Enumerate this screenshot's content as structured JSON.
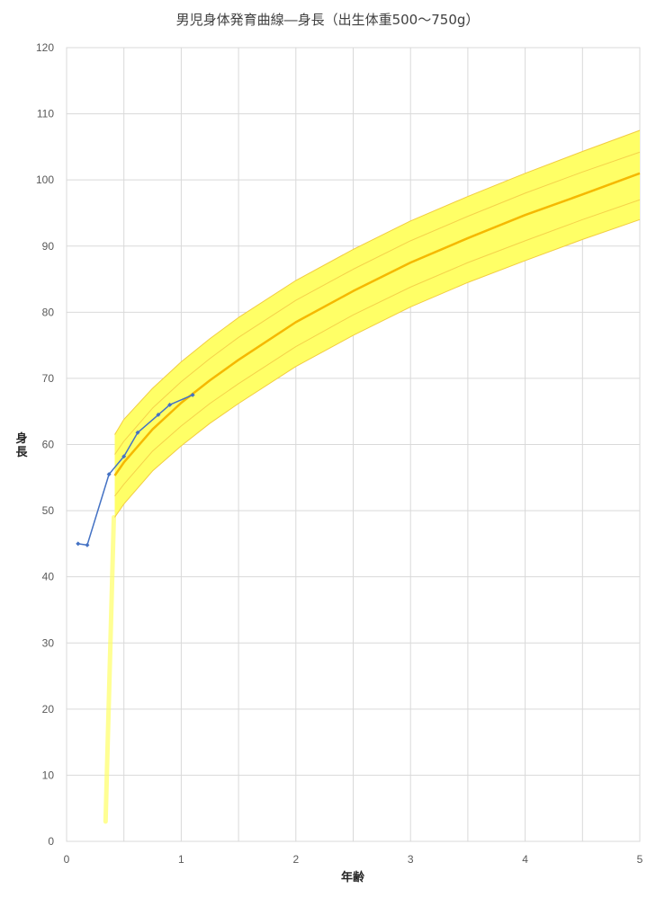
{
  "chart_data": {
    "type": "line",
    "title": "男児身体発育曲線―身長（出生体重500～750g）",
    "xlabel": "年齢",
    "ylabel": "身長",
    "xlim": [
      0,
      5
    ],
    "ylim": [
      0,
      120
    ],
    "x_ticks": [
      "0",
      "1",
      "2",
      "3",
      "4",
      "5"
    ],
    "y_ticks": [
      "0",
      "10",
      "20",
      "30",
      "40",
      "50",
      "60",
      "70",
      "80",
      "90",
      "100",
      "110",
      "120"
    ],
    "grid": true,
    "colors": {
      "band": "#ffff66",
      "band_edge": "#f2cc40",
      "median": "#f5b800",
      "inner_band": "#f5d24a",
      "patient": "#4472c4",
      "grid": "#d9d9d9",
      "frame": "#d9d9d9"
    },
    "series": [
      {
        "x": [
          0.42,
          0.5,
          0.75,
          1.0,
          1.25,
          1.5,
          2.0,
          2.5,
          3.0,
          3.5,
          4.0,
          4.5,
          5.0
        ],
        "values": [
          61.5,
          63.8,
          68.5,
          72.5,
          76.0,
          79.2,
          84.8,
          89.5,
          93.8,
          97.5,
          101.0,
          104.3,
          107.5
        ]
      },
      {
        "x": [
          0.42,
          0.5,
          0.75,
          1.0,
          1.25,
          1.5,
          2.0,
          2.5,
          3.0,
          3.5,
          4.0,
          4.5,
          5.0
        ],
        "values": [
          58.5,
          60.5,
          65.5,
          69.5,
          73.0,
          76.2,
          81.8,
          86.5,
          90.8,
          94.5,
          98.0,
          101.2,
          104.2
        ]
      },
      {
        "x": [
          0.42,
          0.5,
          0.75,
          1.0,
          1.25,
          1.5,
          2.0,
          2.5,
          3.0,
          3.5,
          4.0,
          4.5,
          5.0
        ],
        "values": [
          55.3,
          57.3,
          62.3,
          66.3,
          69.7,
          72.8,
          78.5,
          83.2,
          87.5,
          91.2,
          94.7,
          97.8,
          101.0
        ]
      },
      {
        "x": [
          0.42,
          0.5,
          0.75,
          1.0,
          1.25,
          1.5,
          2.0,
          2.5,
          3.0,
          3.5,
          4.0,
          4.5,
          5.0
        ],
        "values": [
          52.2,
          54.0,
          59.0,
          62.8,
          66.2,
          69.2,
          74.8,
          79.6,
          83.8,
          87.5,
          90.8,
          94.0,
          97.0
        ]
      },
      {
        "x": [
          0.42,
          0.5,
          0.75,
          1.0,
          1.25,
          1.5,
          2.0,
          2.5,
          3.0,
          3.5,
          4.0,
          4.5,
          5.0
        ],
        "values": [
          49.0,
          51.0,
          56.0,
          59.8,
          63.2,
          66.2,
          71.8,
          76.5,
          80.8,
          84.5,
          87.8,
          91.0,
          94.0
        ]
      },
      {
        "x": [
          0.1,
          0.18,
          0.37,
          0.5,
          0.62,
          0.8,
          0.9,
          1.1
        ],
        "values": [
          45.0,
          44.8,
          55.5,
          58.2,
          61.8,
          64.5,
          66.0,
          67.5
        ]
      }
    ]
  }
}
